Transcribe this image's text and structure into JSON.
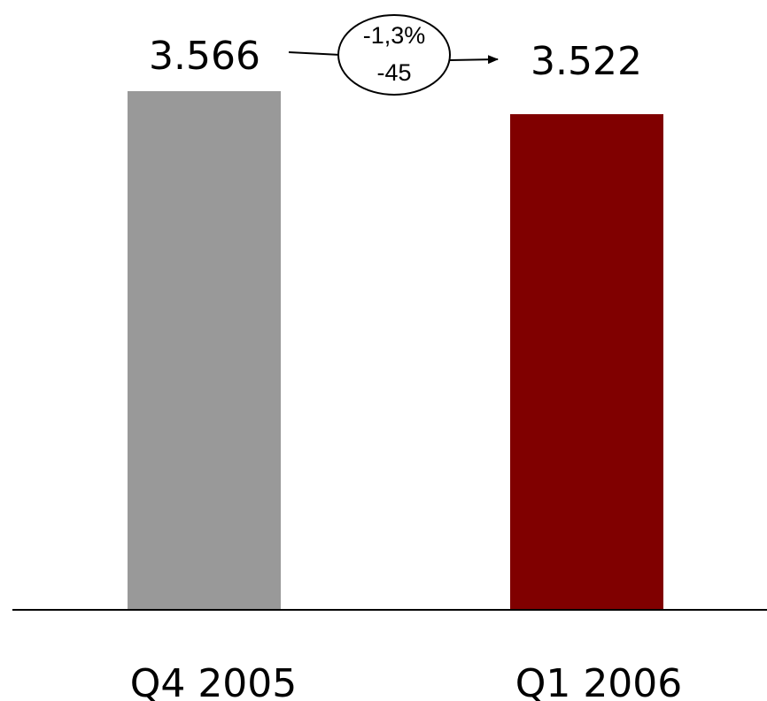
{
  "chart_data": {
    "type": "bar",
    "categories": [
      "Q4 2005",
      "Q1 2006"
    ],
    "values": [
      3566,
      3522
    ],
    "data_labels": [
      "3.566",
      "3.522"
    ],
    "colors": [
      "#999999",
      "#800000"
    ],
    "ylim": [
      0,
      3566
    ],
    "grid": false,
    "annotation": {
      "percent_change": "-1,3%",
      "absolute_change": "-45"
    }
  }
}
